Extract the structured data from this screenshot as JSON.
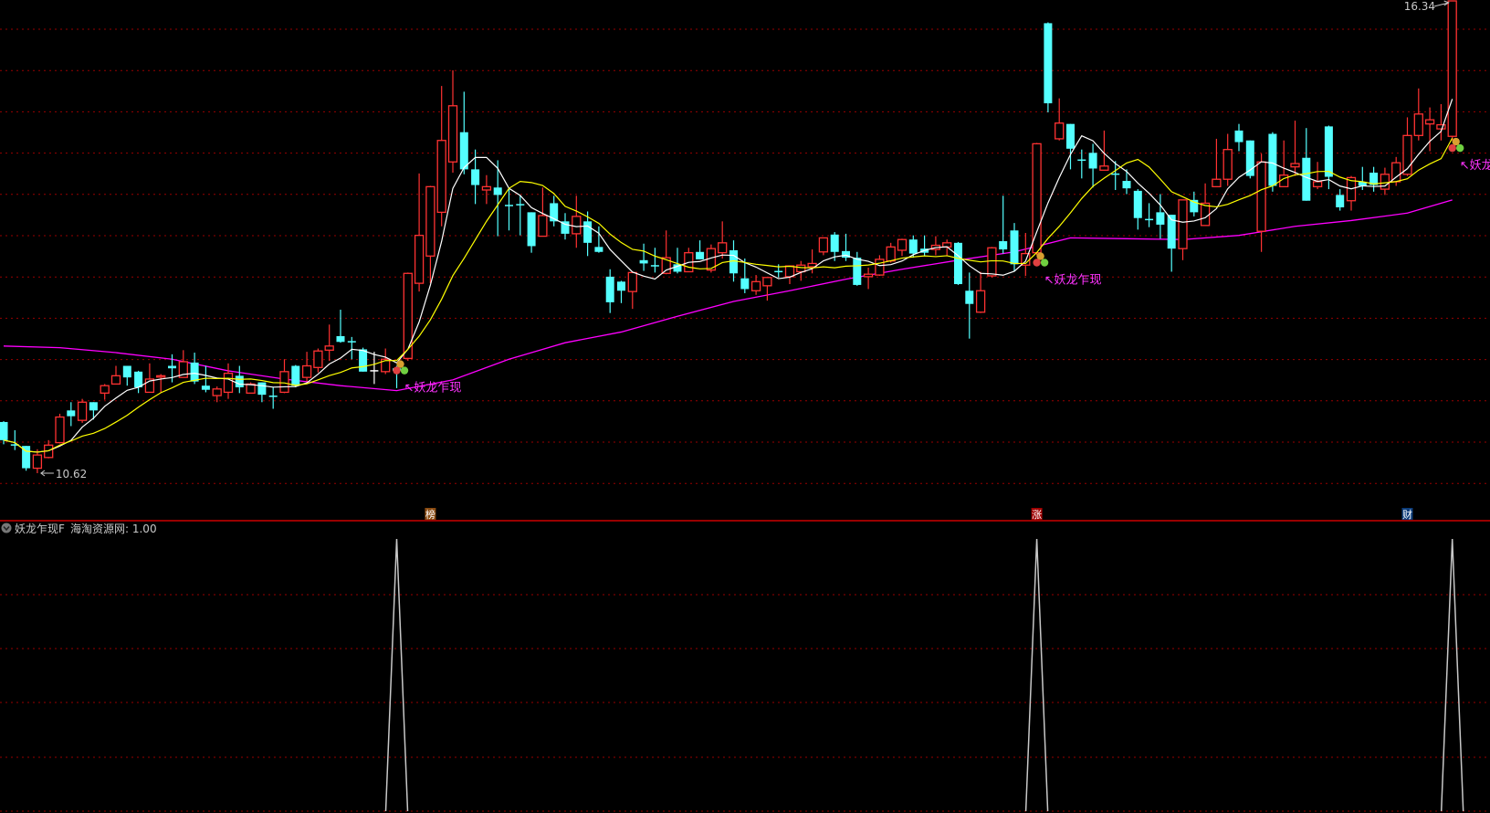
{
  "chart_data": {
    "type": "candlestick",
    "ylim": [
      10.62,
      16.34
    ],
    "grid": true,
    "max_label": "16.34",
    "min_label": "10.62",
    "max_index": 129,
    "min_index": 3,
    "candles": [
      [
        11.24,
        11.25,
        10.97,
        11.02
      ],
      [
        10.97,
        11.14,
        10.9,
        10.96
      ],
      [
        10.95,
        10.95,
        10.65,
        10.68
      ],
      [
        10.68,
        10.91,
        10.62,
        10.84
      ],
      [
        10.81,
        11.02,
        10.8,
        10.96
      ],
      [
        10.99,
        11.34,
        10.98,
        11.3
      ],
      [
        11.38,
        11.48,
        11.19,
        11.31
      ],
      [
        11.26,
        11.52,
        11.23,
        11.48
      ],
      [
        11.48,
        11.48,
        11.27,
        11.38
      ],
      [
        11.59,
        11.7,
        11.51,
        11.68
      ],
      [
        11.7,
        11.92,
        11.7,
        11.8
      ],
      [
        11.92,
        11.92,
        11.68,
        11.78
      ],
      [
        11.85,
        11.86,
        11.59,
        11.66
      ],
      [
        11.6,
        11.95,
        11.6,
        11.76
      ],
      [
        11.79,
        11.82,
        11.6,
        11.8
      ],
      [
        11.92,
        12.06,
        11.72,
        11.89
      ],
      [
        11.78,
        12.11,
        11.78,
        11.97
      ],
      [
        11.96,
        12.08,
        11.7,
        11.73
      ],
      [
        11.68,
        11.92,
        11.6,
        11.63
      ],
      [
        11.56,
        11.67,
        11.48,
        11.64
      ],
      [
        11.6,
        11.95,
        11.52,
        11.83
      ],
      [
        11.8,
        11.92,
        11.59,
        11.66
      ],
      [
        11.59,
        11.72,
        11.59,
        11.7
      ],
      [
        11.72,
        11.72,
        11.48,
        11.57
      ],
      [
        11.56,
        11.66,
        11.4,
        11.55
      ],
      [
        11.6,
        12.0,
        11.59,
        11.85
      ],
      [
        11.92,
        11.93,
        11.66,
        11.68
      ],
      [
        11.78,
        12.09,
        11.73,
        11.92
      ],
      [
        11.9,
        12.13,
        11.84,
        12.1
      ],
      [
        12.11,
        12.42,
        11.98,
        12.16
      ],
      [
        12.28,
        12.6,
        12.2,
        12.21
      ],
      [
        12.22,
        12.27,
        12.0,
        12.21
      ],
      [
        12.12,
        12.14,
        11.85,
        11.85
      ],
      [
        11.86,
        12.09,
        11.7,
        11.86
      ],
      [
        11.85,
        12.13,
        11.82,
        12.0
      ],
      [
        11.89,
        11.92,
        11.65,
        11.86
      ],
      [
        12.01,
        13.05,
        11.98,
        13.04
      ],
      [
        12.92,
        14.25,
        12.82,
        13.5
      ],
      [
        13.25,
        14.1,
        12.92,
        14.09
      ],
      [
        13.78,
        15.31,
        13.61,
        14.65
      ],
      [
        14.39,
        15.5,
        14.26,
        15.07
      ],
      [
        14.75,
        15.24,
        14.24,
        14.3
      ],
      [
        14.3,
        14.54,
        13.88,
        14.11
      ],
      [
        14.05,
        14.23,
        13.88,
        14.09
      ],
      [
        14.08,
        14.41,
        13.49,
        13.99
      ],
      [
        13.87,
        14.06,
        13.56,
        13.86
      ],
      [
        13.88,
        13.99,
        13.5,
        13.87
      ],
      [
        13.78,
        13.78,
        13.29,
        13.37
      ],
      [
        13.49,
        14.08,
        13.49,
        13.74
      ],
      [
        13.89,
        13.98,
        13.61,
        13.67
      ],
      [
        13.67,
        13.77,
        13.45,
        13.52
      ],
      [
        13.52,
        13.98,
        13.35,
        13.73
      ],
      [
        13.67,
        13.79,
        13.25,
        13.41
      ],
      [
        13.36,
        13.61,
        13.29,
        13.3
      ],
      [
        13.0,
        13.09,
        12.56,
        12.69
      ],
      [
        12.94,
        12.95,
        12.68,
        12.83
      ],
      [
        12.82,
        13.05,
        12.61,
        13.05
      ],
      [
        13.2,
        13.4,
        13.07,
        13.16
      ],
      [
        13.14,
        13.35,
        13.05,
        13.13
      ],
      [
        13.04,
        13.56,
        13.03,
        13.23
      ],
      [
        13.15,
        13.35,
        13.04,
        13.06
      ],
      [
        13.06,
        13.35,
        13.06,
        13.29
      ],
      [
        13.3,
        13.44,
        13.21,
        13.21
      ],
      [
        13.08,
        13.39,
        13.05,
        13.34
      ],
      [
        13.29,
        13.67,
        13.22,
        13.41
      ],
      [
        13.32,
        13.44,
        12.94,
        13.04
      ],
      [
        12.98,
        13.22,
        12.8,
        12.85
      ],
      [
        12.83,
        13.02,
        12.78,
        12.94
      ],
      [
        12.89,
        12.99,
        12.71,
        12.99
      ],
      [
        13.07,
        13.15,
        12.99,
        13.06
      ],
      [
        13.0,
        13.13,
        12.91,
        13.13
      ],
      [
        13.06,
        13.19,
        12.95,
        13.14
      ],
      [
        13.12,
        13.33,
        13.04,
        13.16
      ],
      [
        13.3,
        13.47,
        13.26,
        13.47
      ],
      [
        13.51,
        13.54,
        13.19,
        13.3
      ],
      [
        13.31,
        13.52,
        13.19,
        13.23
      ],
      [
        13.23,
        13.3,
        12.89,
        12.9
      ],
      [
        13.0,
        13.11,
        12.85,
        13.03
      ],
      [
        13.02,
        13.26,
        13.01,
        13.21
      ],
      [
        13.19,
        13.41,
        13.17,
        13.36
      ],
      [
        13.32,
        13.46,
        13.25,
        13.45
      ],
      [
        13.45,
        13.5,
        13.23,
        13.28
      ],
      [
        13.34,
        13.5,
        13.25,
        13.29
      ],
      [
        13.33,
        13.49,
        13.26,
        13.38
      ],
      [
        13.36,
        13.45,
        13.26,
        13.41
      ],
      [
        13.41,
        13.42,
        12.9,
        12.91
      ],
      [
        12.83,
        13.05,
        12.25,
        12.67
      ],
      [
        12.57,
        13.06,
        12.56,
        12.83
      ],
      [
        13.01,
        13.36,
        12.99,
        13.35
      ],
      [
        13.43,
        13.98,
        13.28,
        13.33
      ],
      [
        13.56,
        13.65,
        13.06,
        13.15
      ],
      [
        13.14,
        13.53,
        13.01,
        13.28
      ],
      [
        13.29,
        14.62,
        13.26,
        14.61
      ],
      [
        16.07,
        16.08,
        14.99,
        15.1
      ],
      [
        14.67,
        15.16,
        14.65,
        14.86
      ],
      [
        14.85,
        14.85,
        14.3,
        14.55
      ],
      [
        14.42,
        14.54,
        14.19,
        14.41
      ],
      [
        14.5,
        14.61,
        14.08,
        14.31
      ],
      [
        14.29,
        14.77,
        14.29,
        14.34
      ],
      [
        14.25,
        14.4,
        14.05,
        14.24
      ],
      [
        14.16,
        14.3,
        14.0,
        14.07
      ],
      [
        14.04,
        14.06,
        13.57,
        13.71
      ],
      [
        13.7,
        13.89,
        13.6,
        13.69
      ],
      [
        13.78,
        14.0,
        13.46,
        13.63
      ],
      [
        13.75,
        13.75,
        13.06,
        13.34
      ],
      [
        13.34,
        13.93,
        13.2,
        13.93
      ],
      [
        13.93,
        14.03,
        13.73,
        13.78
      ],
      [
        13.62,
        14.13,
        13.62,
        13.89
      ],
      [
        14.09,
        14.67,
        14.09,
        14.18
      ],
      [
        14.18,
        14.73,
        14.1,
        14.54
      ],
      [
        14.77,
        14.85,
        14.52,
        14.63
      ],
      [
        14.65,
        14.65,
        14.19,
        14.22
      ],
      [
        13.55,
        14.49,
        13.3,
        14.39
      ],
      [
        14.73,
        14.75,
        14.03,
        14.1
      ],
      [
        14.09,
        14.65,
        14.09,
        14.23
      ],
      [
        14.33,
        14.89,
        14.22,
        14.37
      ],
      [
        14.44,
        14.8,
        13.92,
        13.92
      ],
      [
        14.09,
        14.39,
        14.06,
        14.15
      ],
      [
        14.82,
        14.83,
        14.06,
        14.21
      ],
      [
        13.99,
        14.06,
        13.8,
        13.84
      ],
      [
        13.92,
        14.22,
        13.8,
        14.2
      ],
      [
        14.15,
        14.33,
        14.05,
        14.1
      ],
      [
        14.26,
        14.33,
        14.03,
        14.11
      ],
      [
        14.06,
        14.32,
        13.99,
        14.24
      ],
      [
        14.15,
        14.45,
        14.1,
        14.38
      ],
      [
        14.24,
        14.93,
        14.22,
        14.71
      ],
      [
        14.71,
        15.28,
        14.65,
        14.97
      ],
      [
        14.85,
        15.05,
        14.52,
        14.9
      ],
      [
        14.79,
        15.09,
        14.65,
        14.84
      ],
      [
        14.7,
        16.34,
        14.65,
        16.34
      ]
    ],
    "ma_short_periods": [
      5,
      10
    ],
    "ma_long": {
      "index": [
        0,
        5,
        10,
        15,
        20,
        25,
        30,
        35,
        40,
        45,
        50,
        55,
        60,
        65,
        70,
        75,
        80,
        85,
        90,
        95,
        100,
        105,
        110,
        115,
        120,
        125,
        129
      ],
      "values": [
        12.16,
        12.14,
        12.08,
        12.0,
        11.86,
        11.76,
        11.68,
        11.62,
        11.75,
        12.0,
        12.2,
        12.33,
        12.52,
        12.7,
        12.83,
        12.97,
        13.09,
        13.2,
        13.3,
        13.47,
        13.46,
        13.45,
        13.5,
        13.61,
        13.68,
        13.77,
        13.93
      ]
    },
    "colors": {
      "up": "#ff3232",
      "down": "#54ffff",
      "flat": "#ffffff",
      "ma5": "#ffffff",
      "ma10": "#ffff00",
      "ma_long": "#ff00ff",
      "grid": "#990000",
      "indicator": "#c8c8c8"
    },
    "signals": {
      "indices": [
        35,
        92,
        129
      ],
      "label": "↖妖龙乍现"
    },
    "event_markers": [
      {
        "index": 38,
        "text": "榜",
        "bg": "#8a4a10"
      },
      {
        "index": 92,
        "text": "涨",
        "bg": "#a00000"
      },
      {
        "index": 125,
        "text": "财",
        "bg": "#0c3c7a"
      }
    ],
    "indicator": {
      "title": "妖龙乍现F",
      "series_label": "海淘资源网: 1.00",
      "ylim": [
        0,
        1
      ],
      "spike_indices": [
        35,
        92,
        129
      ],
      "spike_value": 1.0
    }
  }
}
